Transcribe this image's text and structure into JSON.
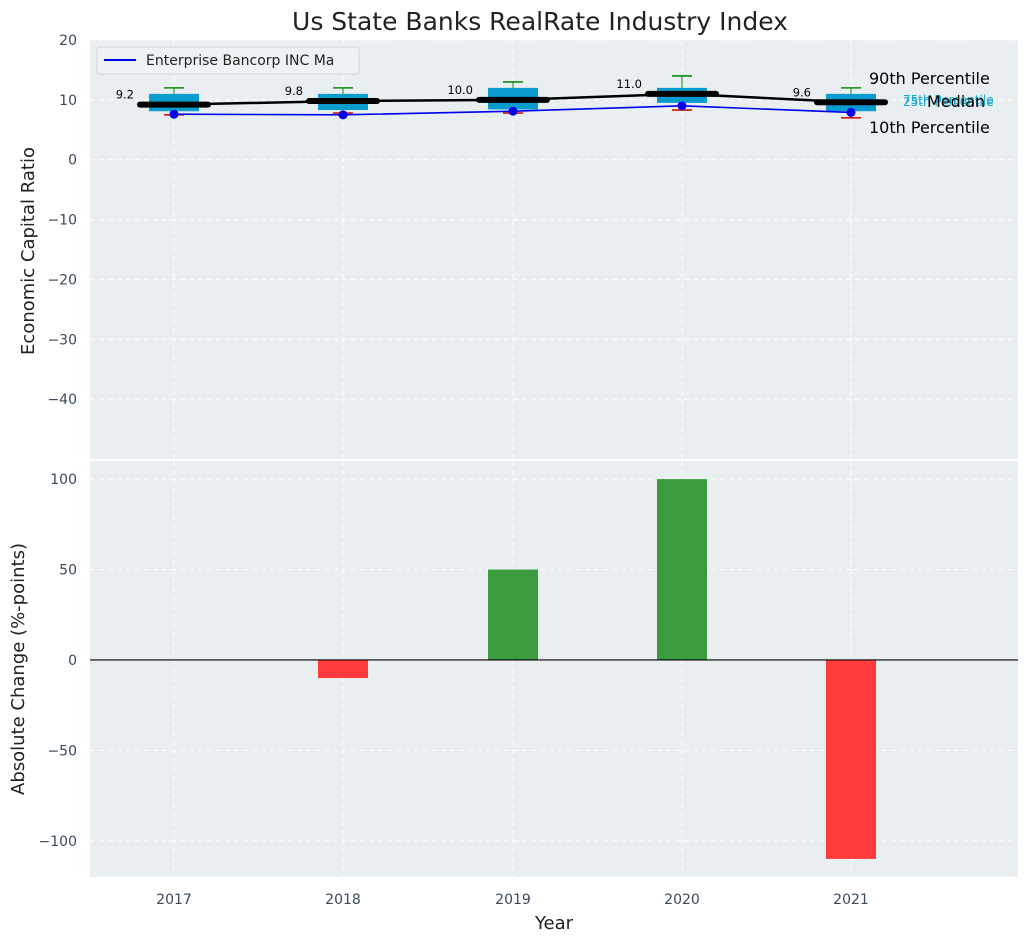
{
  "colors": {
    "panel_bg": "#e9eef0",
    "grid": "#ffffff",
    "box": "#0b9ccf",
    "median_bar": "#000000",
    "company_line": "#0000ee",
    "whisker_high": "#138a13",
    "whisker_low": "#dd1111",
    "positive": "#3a9c3e",
    "negative": "#ff3b3b"
  },
  "chart_data": [
    {
      "type": "box",
      "title": "Us State Banks RealRate Industry Index",
      "xlabel": "",
      "ylabel": "Economic Capital Ratio",
      "ylim": [
        -50,
        20
      ],
      "yticks": [
        20,
        10,
        0,
        -10,
        -20,
        -30,
        -40
      ],
      "ytick_labels": [
        "20",
        "10",
        "0",
        "−10",
        "−20",
        "−30",
        "−40"
      ],
      "categories": [
        "2017",
        "2018",
        "2019",
        "2020",
        "2021"
      ],
      "p10": [
        7.5,
        7.8,
        7.8,
        8.3,
        7.0
      ],
      "p25": [
        8.1,
        8.3,
        8.4,
        9.5,
        8.1
      ],
      "median": [
        9.2,
        9.8,
        10.0,
        11.0,
        9.6
      ],
      "median_labels": [
        "9.2",
        "9.8",
        "10.0",
        "11.0",
        "9.6"
      ],
      "p75": [
        11.0,
        11.0,
        12.0,
        12.0,
        11.0
      ],
      "p90": [
        12.0,
        12.0,
        13.0,
        14.0,
        12.0
      ],
      "company": {
        "name": "Enterprise Bancorp INC Ma",
        "values": [
          7.6,
          7.5,
          8.1,
          9.0,
          7.9
        ]
      },
      "legend": {
        "entries": [
          "Enterprise Bancorp INC Ma"
        ],
        "position": "top-left"
      },
      "annotations": {
        "p90": "90th Percentile",
        "p75": "75th Percentile",
        "median": "Median",
        "p25": "25th Percentile",
        "p10": "10th Percentile"
      }
    },
    {
      "type": "bar",
      "xlabel": "Year",
      "ylabel": "Absolute Change (%-points)",
      "ylim": [
        -120,
        110
      ],
      "yticks": [
        100,
        50,
        0,
        -50,
        -100
      ],
      "ytick_labels": [
        "100",
        "50",
        "0",
        "−50",
        "−100"
      ],
      "categories": [
        "2017",
        "2018",
        "2019",
        "2020",
        "2021"
      ],
      "values": [
        0,
        -10,
        50,
        100,
        -110
      ]
    }
  ]
}
